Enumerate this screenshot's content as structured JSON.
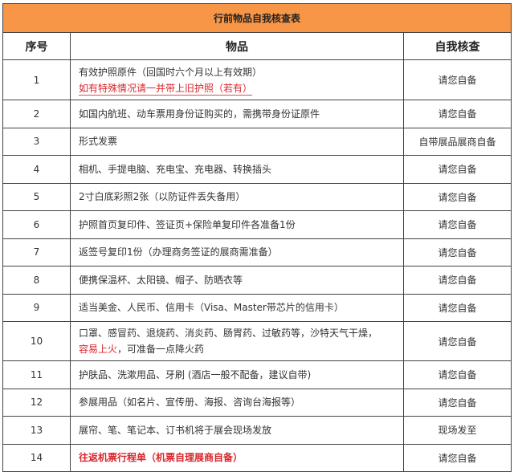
{
  "title": "行前物品自我核查表",
  "headers": {
    "num": "序号",
    "item": "物品",
    "check": "自我核查"
  },
  "rows": [
    {
      "num": "1",
      "item": "有效护照原件（回国时六个月以上有效期）",
      "note": "如有特殊情况请一并带上旧护照（若有）",
      "check": "请您自备"
    },
    {
      "num": "2",
      "item": "如国内航班、动车票用身份证购买的，需携带身份证原件",
      "check": "请您自备"
    },
    {
      "num": "3",
      "item": "形式发票",
      "check": "自带展品展商自备"
    },
    {
      "num": "4",
      "item": "相机、手提电脑、充电宝、充电器、转换插头",
      "check": "请您自备"
    },
    {
      "num": "5",
      "item": "2寸白底彩照2张（以防证件丢失备用）",
      "check": "请您自备"
    },
    {
      "num": "6",
      "item": "护照首页复印件、签证页+保险单复印件各准备1份",
      "check": "请您自备"
    },
    {
      "num": "7",
      "item": "返签号复印1份（办理商务签证的展商需准备）",
      "check": "请您自备"
    },
    {
      "num": "8",
      "item": "便携保温杯、太阳镜、帽子、防晒衣等",
      "check": "请您自备"
    },
    {
      "num": "9",
      "item": "适当美金、人民币、信用卡（Visa、Master带芯片的信用卡）",
      "check": "请您自备"
    },
    {
      "num": "10",
      "item": "口罩、感冒药、退烧药、消炎药、肠胃药、过敏药等，沙特天气干燥，",
      "item_red": "容易上火",
      "item_tail": "，可准备一点降火药",
      "check": "请您自备"
    },
    {
      "num": "11",
      "item": "护肤品、洗漱用品、牙刷 (酒店一般不配备，建议自带)",
      "check": "请您自备"
    },
    {
      "num": "12",
      "item": "参展用品（如名片、宣传册、海报、咨询台海报等）",
      "check": "请您自备"
    },
    {
      "num": "13",
      "item": "展帘、笔、笔记本、订书机将于展会现场发放",
      "check": "现场发至"
    },
    {
      "num": "14",
      "item": "往返机票行程单（机票自理展商自备）",
      "check": "请您自备"
    }
  ],
  "colors": {
    "title_bg": "#f79646",
    "highlight": "#d9262c"
  }
}
